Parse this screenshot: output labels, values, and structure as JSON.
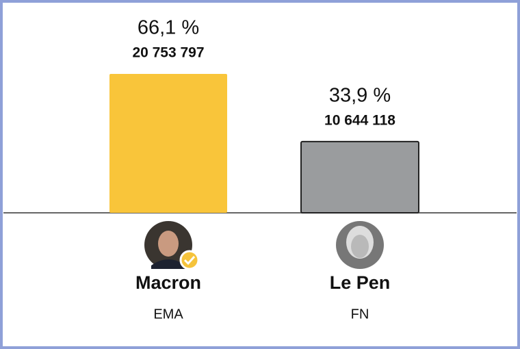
{
  "chart_data": {
    "type": "bar",
    "categories": [
      "Macron",
      "Le Pen"
    ],
    "parties": [
      "EMA",
      "FN"
    ],
    "values": [
      66.1,
      33.9
    ],
    "value_labels": [
      "66,1 %",
      "33,9 %"
    ],
    "counts": [
      "20 753 797",
      "10 644 118"
    ],
    "colors": [
      "#f9c53a",
      "#9a9c9e"
    ]
  }
}
